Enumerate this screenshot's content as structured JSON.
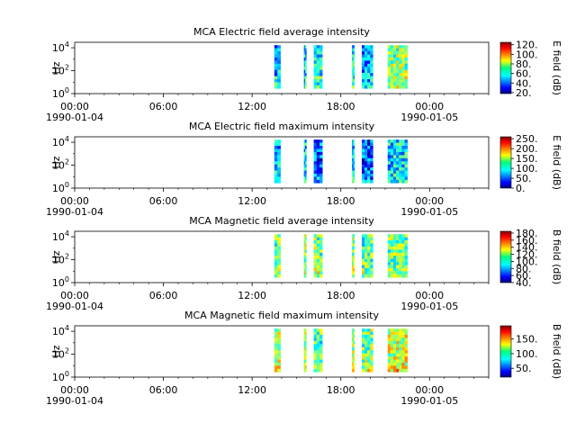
{
  "figure": {
    "x_tick_labels": [
      "00:00",
      "06:00",
      "12:00",
      "18:00",
      "00:00"
    ],
    "x_date_start": "1990-01-04",
    "x_date_end": "1990-01-05"
  },
  "chart_data": [
    {
      "type": "heatmap",
      "title": "MCA  Electric field average intensity",
      "ylabel": "Hz",
      "y_tick_labels": [
        "10^0",
        "10^2",
        "10^4"
      ],
      "y_scale": "log",
      "ylim": [
        1,
        30000
      ],
      "xlim": [
        "1990-01-04 00:00",
        "1990-01-05 04:00"
      ],
      "x_ticks": [
        "1990-01-04 00:00",
        "1990-01-04 06:00",
        "1990-01-04 12:00",
        "1990-01-04 18:00",
        "1990-01-05 00:00"
      ],
      "colorbar": {
        "label": "E field (dB)",
        "range": [
          18,
          125
        ],
        "ticks": [
          "20.",
          "40.",
          "60.",
          "80.",
          "100.",
          "120."
        ]
      },
      "data_segments": [
        {
          "start": "13:30",
          "end": "13:55",
          "level": 50
        },
        {
          "start": "15:30",
          "end": "15:40",
          "level": 55
        },
        {
          "start": "16:10",
          "end": "16:45",
          "level": 58
        },
        {
          "start": "18:45",
          "end": "18:55",
          "level": 55
        },
        {
          "start": "19:25",
          "end": "20:10",
          "level": 48
        },
        {
          "start": "21:10",
          "end": "22:30",
          "level": 72
        }
      ],
      "colorscale": "jet",
      "grid": false
    },
    {
      "type": "heatmap",
      "title": "MCA  Electric field maximum intensity",
      "ylabel": "Hz",
      "y_tick_labels": [
        "10^0",
        "10^2",
        "10^4"
      ],
      "y_scale": "log",
      "ylim": [
        1,
        30000
      ],
      "xlim": [
        "1990-01-04 00:00",
        "1990-01-05 04:00"
      ],
      "x_ticks": [
        "1990-01-04 00:00",
        "1990-01-04 06:00",
        "1990-01-04 12:00",
        "1990-01-04 18:00",
        "1990-01-05 00:00"
      ],
      "colorbar": {
        "label": "E field (dB)",
        "range": [
          0,
          260
        ],
        "ticks": [
          "0.",
          "50.",
          "100.",
          "150.",
          "200.",
          "250."
        ]
      },
      "data_segments": [
        {
          "start": "13:30",
          "end": "13:55",
          "level": 80
        },
        {
          "start": "15:30",
          "end": "15:40",
          "level": 85
        },
        {
          "start": "16:10",
          "end": "16:45",
          "level": 55
        },
        {
          "start": "18:45",
          "end": "18:55",
          "level": 85
        },
        {
          "start": "19:25",
          "end": "20:10",
          "level": 50
        },
        {
          "start": "21:10",
          "end": "22:30",
          "level": 90
        }
      ],
      "colorscale": "jet",
      "grid": false
    },
    {
      "type": "heatmap",
      "title": "MCA  Magnetic field average intensity",
      "ylabel": "Hz",
      "y_tick_labels": [
        "10^0",
        "10^2",
        "10^4"
      ],
      "y_scale": "log",
      "ylim": [
        1,
        30000
      ],
      "xlim": [
        "1990-01-04 00:00",
        "1990-01-05 04:00"
      ],
      "x_ticks": [
        "1990-01-04 00:00",
        "1990-01-04 06:00",
        "1990-01-04 12:00",
        "1990-01-04 18:00",
        "1990-01-05 00:00"
      ],
      "colorbar": {
        "label": "B field (dB)",
        "range": [
          40,
          185
        ],
        "ticks": [
          "40.",
          "60.",
          "80.",
          "100.",
          "120.",
          "140.",
          "160.",
          "180."
        ]
      },
      "data_segments": [
        {
          "start": "13:30",
          "end": "13:55",
          "level": 110
        },
        {
          "start": "15:30",
          "end": "15:40",
          "level": 115
        },
        {
          "start": "16:10",
          "end": "16:45",
          "level": 110
        },
        {
          "start": "18:45",
          "end": "18:55",
          "level": 115
        },
        {
          "start": "19:25",
          "end": "20:10",
          "level": 105
        },
        {
          "start": "21:10",
          "end": "22:30",
          "level": 110
        }
      ],
      "colorscale": "jet",
      "grid": false
    },
    {
      "type": "heatmap",
      "title": "MCA  Magnetic field maximum intensity",
      "ylabel": "Hz",
      "y_tick_labels": [
        "10^0",
        "10^2",
        "10^4"
      ],
      "y_scale": "log",
      "ylim": [
        1,
        30000
      ],
      "xlim": [
        "1990-01-04 00:00",
        "1990-01-05 04:00"
      ],
      "x_ticks": [
        "1990-01-04 00:00",
        "1990-01-04 06:00",
        "1990-01-04 12:00",
        "1990-01-04 18:00",
        "1990-01-05 00:00"
      ],
      "colorbar": {
        "label": "B field (dB)",
        "range": [
          20,
          195
        ],
        "ticks": [
          "50.",
          "100.",
          "150."
        ]
      },
      "data_segments": [
        {
          "start": "13:30",
          "end": "13:55",
          "level": 110
        },
        {
          "start": "15:30",
          "end": "15:40",
          "level": 115
        },
        {
          "start": "16:10",
          "end": "16:45",
          "level": 100
        },
        {
          "start": "18:45",
          "end": "18:55",
          "level": 115
        },
        {
          "start": "19:25",
          "end": "20:10",
          "level": 105
        },
        {
          "start": "21:10",
          "end": "22:30",
          "level": 120
        }
      ],
      "colorscale": "jet",
      "grid": false
    }
  ]
}
